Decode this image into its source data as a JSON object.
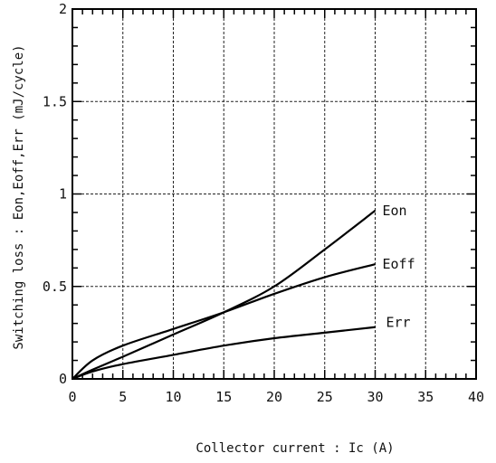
{
  "chart_data": {
    "type": "line",
    "xlabel": "Collector current : Ic   (A)",
    "ylabel": "Switching loss : Eon,Eoff,Err  (mJ/cycle)",
    "xlim": [
      0,
      40
    ],
    "ylim": [
      0,
      2
    ],
    "x_ticks": [
      "0",
      "5",
      "10",
      "15",
      "20",
      "25",
      "30",
      "35",
      "40"
    ],
    "y_ticks": [
      "0",
      "0.5",
      "1",
      "1.5",
      "2"
    ],
    "grid": true,
    "series": [
      {
        "name": "Eon",
        "x": [
          0,
          2,
          5,
          10,
          15,
          20,
          25,
          30
        ],
        "y": [
          0,
          0.05,
          0.12,
          0.24,
          0.36,
          0.5,
          0.7,
          0.91
        ]
      },
      {
        "name": "Eoff",
        "x": [
          0,
          2,
          5,
          10,
          15,
          20,
          25,
          30
        ],
        "y": [
          0,
          0.1,
          0.18,
          0.27,
          0.36,
          0.46,
          0.55,
          0.62
        ]
      },
      {
        "name": "Err",
        "x": [
          0,
          2,
          5,
          10,
          15,
          20,
          25,
          30
        ],
        "y": [
          0,
          0.04,
          0.08,
          0.13,
          0.18,
          0.22,
          0.25,
          0.28
        ]
      }
    ]
  }
}
